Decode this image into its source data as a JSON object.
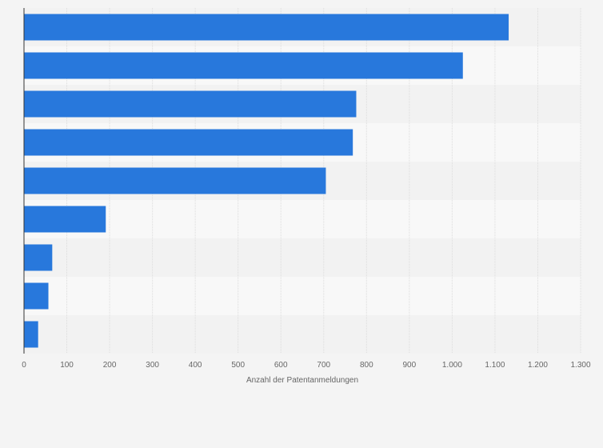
{
  "chart_data": {
    "type": "bar",
    "orientation": "horizontal",
    "categories": [
      "",
      "",
      "",
      "",
      "",
      "",
      "",
      "",
      ""
    ],
    "values": [
      1132,
      1025,
      776,
      768,
      705,
      191,
      66,
      57,
      33
    ],
    "title": "",
    "xlabel": "Anzahl der Patentanmeldungen",
    "ylabel": "",
    "xlim": [
      0,
      1300
    ],
    "xticks": [
      "0",
      "100",
      "200",
      "300",
      "400",
      "500",
      "600",
      "700",
      "800",
      "900",
      "1.000",
      "1.100",
      "1.200",
      "1.300"
    ],
    "grid": true,
    "legend": "none"
  },
  "colors": {
    "bar": "#2878dc",
    "background": "#f4f4f4",
    "band_light": "#f8f8f8",
    "band_dark": "#f2f2f2",
    "grid": "#dcdcdc",
    "axis": "#333333",
    "text": "#666666"
  }
}
